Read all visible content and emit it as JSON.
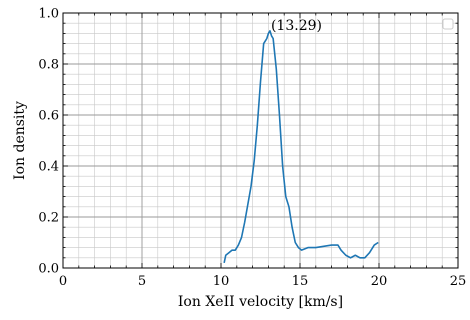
{
  "chart_data": {
    "type": "line",
    "xlabel": "Ion XeII velocity [km/s]",
    "ylabel": "Ion density",
    "xlim": [
      0,
      25
    ],
    "ylim": [
      0,
      1.0
    ],
    "xticks": [
      0,
      5,
      10,
      15,
      20,
      25
    ],
    "yticks": [
      0.0,
      0.2,
      0.4,
      0.6,
      0.8,
      1.0
    ],
    "xtick_labels": [
      "0",
      "5",
      "10",
      "15",
      "20",
      "25"
    ],
    "ytick_labels": [
      "0.0",
      "0.2",
      "0.4",
      "0.6",
      "0.8",
      "1.0"
    ],
    "grid": true,
    "minor_grid": true,
    "legend": "top-right",
    "series": [
      {
        "color": "#1f77b4",
        "points": [
          [
            10.2,
            0.02
          ],
          [
            10.3,
            0.05
          ],
          [
            10.5,
            0.06
          ],
          [
            10.7,
            0.07
          ],
          [
            10.9,
            0.07
          ],
          [
            11.1,
            0.09
          ],
          [
            11.3,
            0.12
          ],
          [
            11.5,
            0.18
          ],
          [
            11.7,
            0.25
          ],
          [
            11.9,
            0.32
          ],
          [
            12.1,
            0.42
          ],
          [
            12.3,
            0.56
          ],
          [
            12.5,
            0.73
          ],
          [
            12.7,
            0.88
          ],
          [
            12.8,
            0.89
          ],
          [
            12.9,
            0.9
          ],
          [
            13.0,
            0.92
          ],
          [
            13.1,
            0.93
          ],
          [
            13.2,
            0.91
          ],
          [
            13.3,
            0.9
          ],
          [
            13.5,
            0.78
          ],
          [
            13.7,
            0.6
          ],
          [
            13.9,
            0.4
          ],
          [
            14.1,
            0.28
          ],
          [
            14.3,
            0.24
          ],
          [
            14.5,
            0.16
          ],
          [
            14.7,
            0.1
          ],
          [
            14.9,
            0.08
          ],
          [
            15.1,
            0.07
          ],
          [
            15.5,
            0.08
          ],
          [
            16.0,
            0.08
          ],
          [
            16.5,
            0.085
          ],
          [
            17.0,
            0.09
          ],
          [
            17.4,
            0.09
          ],
          [
            17.6,
            0.07
          ],
          [
            17.9,
            0.05
          ],
          [
            18.2,
            0.04
          ],
          [
            18.5,
            0.05
          ],
          [
            18.8,
            0.04
          ],
          [
            19.1,
            0.04
          ],
          [
            19.4,
            0.06
          ],
          [
            19.7,
            0.09
          ],
          [
            19.95,
            0.1
          ]
        ]
      }
    ],
    "annotations": [
      {
        "text": "(13.29)",
        "x": 13.29,
        "y": 0.93
      }
    ]
  }
}
